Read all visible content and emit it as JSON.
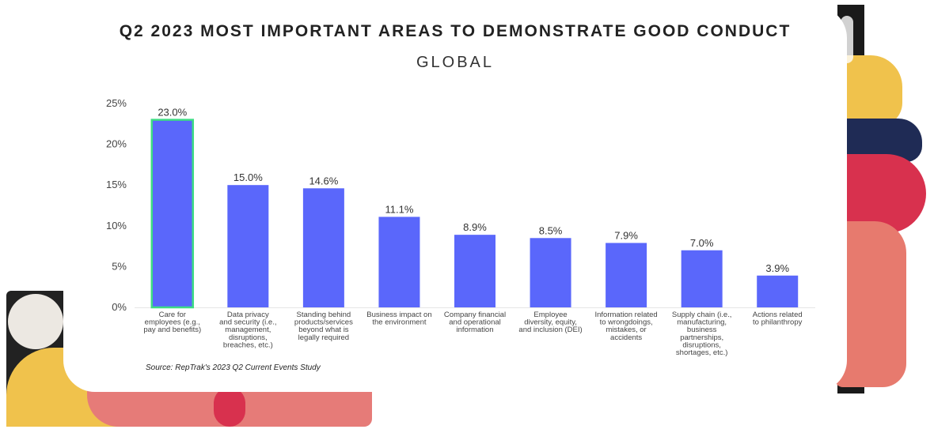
{
  "title": "Q2 2023 MOST IMPORTANT AREAS TO DEMONSTRATE GOOD CONDUCT",
  "subtitle": "GLOBAL",
  "source": "Source: RepTrak's 2023 Q2 Current Events Study",
  "colors": {
    "bar": "#5a67fb",
    "highlight_border": "#3ddc84"
  },
  "chart_data": {
    "type": "bar",
    "title": "Q2 2023 MOST IMPORTANT AREAS TO DEMONSTRATE GOOD CONDUCT",
    "subtitle": "GLOBAL",
    "xlabel": "",
    "ylabel": "",
    "ylim": [
      0,
      25
    ],
    "yticks": [
      "0%",
      "5%",
      "10%",
      "15%",
      "20%",
      "25%"
    ],
    "grid": false,
    "categories": [
      [
        "Care for",
        "employees (e.g.,",
        "pay and benefits)"
      ],
      [
        "Data privacy",
        "and security (i.e.,",
        "management,",
        "disruptions,",
        "breaches, etc.)"
      ],
      [
        "Standing behind",
        "products/services",
        "beyond what is",
        "legally required"
      ],
      [
        "Business impact on",
        "the environment"
      ],
      [
        "Company financial",
        "and operational",
        "information"
      ],
      [
        "Employee",
        "diversity, equity,",
        "and inclusion (DEI)"
      ],
      [
        "Information related",
        "to wrongdoings,",
        "mistakes, or",
        "accidents"
      ],
      [
        "Supply chain (i.e.,",
        "manufacturing,",
        "business",
        "partnerships,",
        "disruptions,",
        "shortages, etc.)"
      ],
      [
        "Actions related",
        "to philanthropy"
      ]
    ],
    "values": [
      23.0,
      15.0,
      14.6,
      11.1,
      8.9,
      8.5,
      7.9,
      7.0,
      3.9
    ],
    "value_labels": [
      "23.0%",
      "15.0%",
      "14.6%",
      "11.1%",
      "8.9%",
      "8.5%",
      "7.9%",
      "7.0%",
      "3.9%"
    ],
    "highlighted_index": 0
  }
}
